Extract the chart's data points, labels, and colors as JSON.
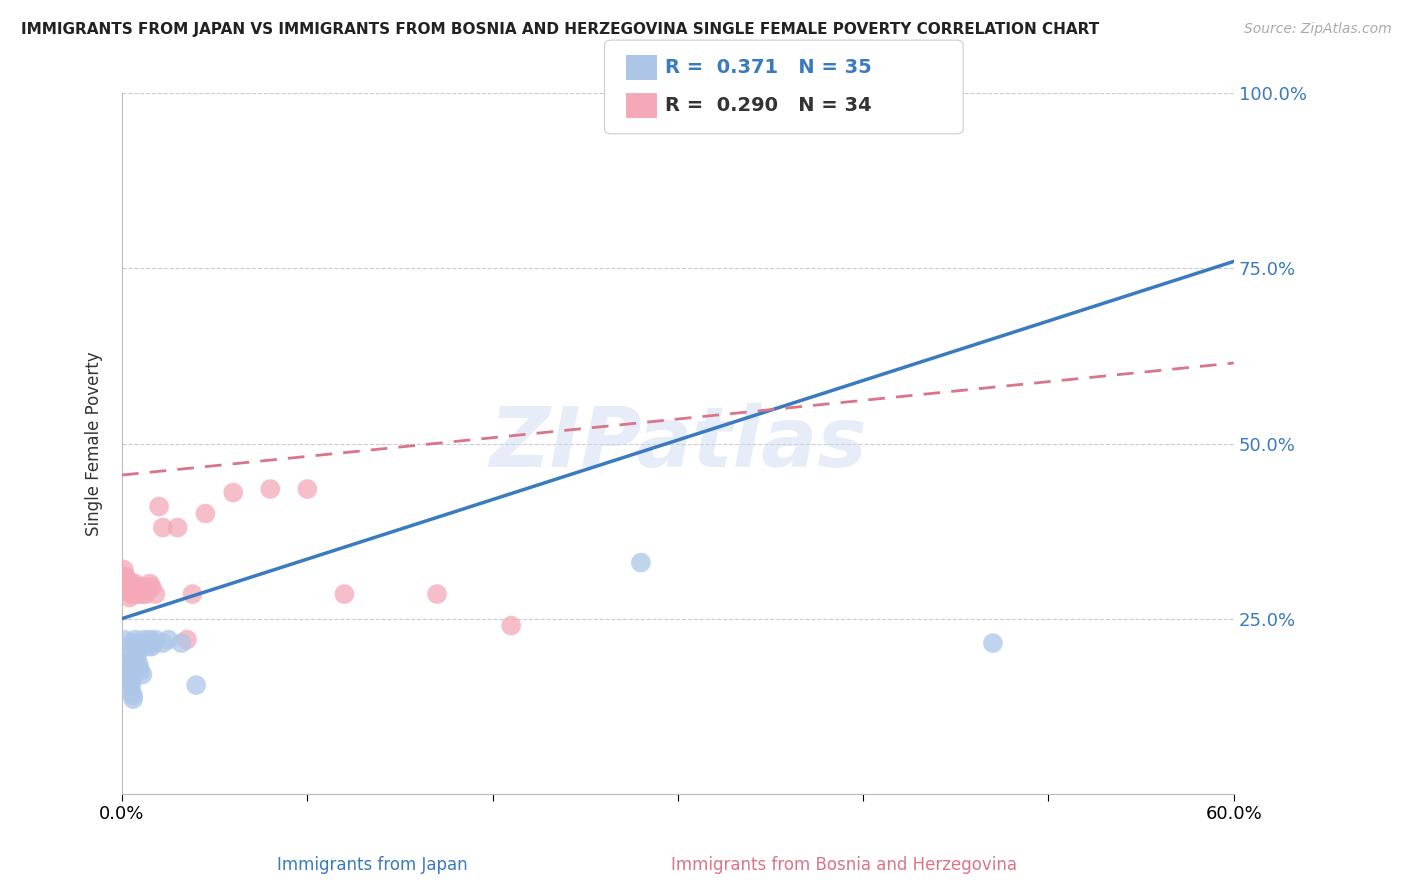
{
  "title": "IMMIGRANTS FROM JAPAN VS IMMIGRANTS FROM BOSNIA AND HERZEGOVINA SINGLE FEMALE POVERTY CORRELATION CHART",
  "source": "Source: ZipAtlas.com",
  "xlabel_japan": "Immigrants from Japan",
  "xlabel_bosnia": "Immigrants from Bosnia and Herzegovina",
  "ylabel": "Single Female Poverty",
  "xlim": [
    0.0,
    0.6
  ],
  "ylim": [
    0.0,
    1.0
  ],
  "xticks": [
    0.0,
    0.1,
    0.2,
    0.3,
    0.4,
    0.5,
    0.6
  ],
  "xtick_labels": [
    "0.0%",
    "",
    "",
    "",
    "",
    "",
    "60.0%"
  ],
  "ytick_labels": [
    "",
    "25.0%",
    "50.0%",
    "75.0%",
    "100.0%"
  ],
  "yticks": [
    0.0,
    0.25,
    0.5,
    0.75,
    1.0
  ],
  "R_japan": "0.371",
  "N_japan": "35",
  "R_bosnia": "0.290",
  "N_bosnia": "34",
  "color_japan": "#adc6e8",
  "color_bosnia": "#f4a8b8",
  "line_color_japan": "#3a7abf",
  "line_color_bosnia": "#d9748a",
  "watermark": "ZIPatlas",
  "japan_trend_x0": 0.0,
  "japan_trend_y0": 0.25,
  "japan_trend_x1": 0.6,
  "japan_trend_y1": 0.76,
  "bosnia_trend_x0": 0.0,
  "bosnia_trend_y0": 0.455,
  "bosnia_trend_x1": 0.6,
  "bosnia_trend_y1": 0.615,
  "japan_x": [
    0.001,
    0.001,
    0.002,
    0.002,
    0.003,
    0.003,
    0.004,
    0.004,
    0.005,
    0.005,
    0.005,
    0.006,
    0.006,
    0.007,
    0.007,
    0.007,
    0.008,
    0.008,
    0.009,
    0.009,
    0.01,
    0.011,
    0.012,
    0.013,
    0.014,
    0.015,
    0.016,
    0.017,
    0.018,
    0.022,
    0.025,
    0.032,
    0.04,
    0.28,
    0.47
  ],
  "japan_y": [
    0.22,
    0.21,
    0.185,
    0.195,
    0.18,
    0.175,
    0.17,
    0.165,
    0.16,
    0.155,
    0.145,
    0.14,
    0.135,
    0.22,
    0.215,
    0.21,
    0.2,
    0.195,
    0.185,
    0.18,
    0.175,
    0.17,
    0.22,
    0.215,
    0.21,
    0.22,
    0.21,
    0.215,
    0.22,
    0.215,
    0.22,
    0.215,
    0.155,
    0.33,
    0.215
  ],
  "bosnia_x": [
    0.001,
    0.001,
    0.002,
    0.002,
    0.003,
    0.003,
    0.004,
    0.004,
    0.005,
    0.005,
    0.006,
    0.007,
    0.008,
    0.008,
    0.009,
    0.01,
    0.011,
    0.012,
    0.013,
    0.015,
    0.016,
    0.018,
    0.02,
    0.022,
    0.03,
    0.035,
    0.038,
    0.045,
    0.06,
    0.08,
    0.1,
    0.12,
    0.17,
    0.21
  ],
  "bosnia_y": [
    0.32,
    0.31,
    0.295,
    0.31,
    0.305,
    0.29,
    0.28,
    0.295,
    0.3,
    0.285,
    0.285,
    0.3,
    0.285,
    0.295,
    0.285,
    0.295,
    0.285,
    0.295,
    0.285,
    0.3,
    0.295,
    0.285,
    0.41,
    0.38,
    0.38,
    0.22,
    0.285,
    0.4,
    0.43,
    0.435,
    0.435,
    0.285,
    0.285,
    0.24
  ]
}
